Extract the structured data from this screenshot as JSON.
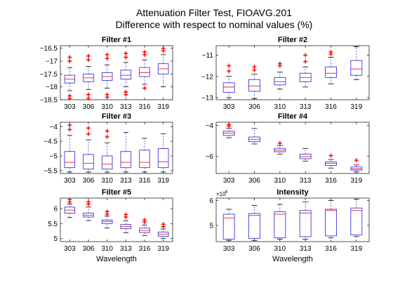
{
  "figure": {
    "title_line1": "Attenuation Filter Test, FIOAVG.201",
    "title_line2": "Difference with respect to nominal values (%)"
  },
  "colors": {
    "box": "#3a3adf",
    "median": "#e8202a",
    "outlier": "#ff0000",
    "axis": "#262626"
  },
  "chart_data": [
    {
      "type": "boxplot",
      "title": "Filter #1",
      "xlabel": "",
      "categories": [
        "303",
        "306",
        "310",
        "313",
        "316",
        "319"
      ],
      "ylim": [
        -18.5,
        -16.4
      ],
      "yticks": [
        -18.5,
        -18,
        -17.5,
        -17,
        -16.5
      ],
      "boxes": [
        {
          "whisker_low": -18.15,
          "q1": -17.85,
          "median": -17.7,
          "q3": -17.55,
          "whisker_high": -17.25,
          "outliers_low": [
            -18.35,
            -18.45
          ],
          "outliers_high": [
            -17.0,
            -16.85
          ]
        },
        {
          "whisker_low": -18.1,
          "q1": -17.8,
          "median": -17.65,
          "q3": -17.5,
          "whisker_high": -17.2,
          "outliers_low": [
            -18.3,
            -18.45
          ],
          "outliers_high": [
            -16.95,
            -16.8
          ]
        },
        {
          "whisker_low": -18.05,
          "q1": -17.75,
          "median": -17.6,
          "q3": -17.45,
          "whisker_high": -17.15,
          "outliers_low": [
            -18.3,
            -18.4
          ],
          "outliers_high": [
            -16.9,
            -16.75
          ]
        },
        {
          "whisker_low": -18.0,
          "q1": -17.7,
          "median": -17.55,
          "q3": -17.35,
          "whisker_high": -17.05,
          "outliers_low": [
            -18.2,
            -18.3
          ],
          "outliers_high": [
            -16.85,
            -16.7
          ]
        },
        {
          "whisker_low": -17.9,
          "q1": -17.6,
          "median": -17.45,
          "q3": -17.25,
          "whisker_high": -16.95,
          "outliers_low": [
            -18.05
          ],
          "outliers_high": [
            -16.75,
            -16.65
          ]
        },
        {
          "whisker_low": -18.0,
          "q1": -17.5,
          "median": -17.3,
          "q3": -17.1,
          "whisker_high": -16.75,
          "outliers_low": [],
          "outliers_high": [
            -16.6,
            -16.5
          ]
        }
      ]
    },
    {
      "type": "boxplot",
      "title": "Filter #2",
      "xlabel": "",
      "categories": [
        "303",
        "306",
        "310",
        "313",
        "316",
        "319"
      ],
      "ylim": [
        -13.1,
        -10.55
      ],
      "yticks": [
        -13,
        -12,
        -11
      ],
      "boxes": [
        {
          "whisker_low": -13.0,
          "q1": -12.75,
          "median": -12.5,
          "q3": -12.3,
          "whisker_high": -12.0,
          "outliers_low": [],
          "outliers_high": [
            -11.75,
            -11.5
          ]
        },
        {
          "whisker_low": -13.05,
          "q1": -12.7,
          "median": -12.45,
          "q3": -12.15,
          "whisker_high": -11.9,
          "outliers_low": [],
          "outliers_high": [
            -11.7,
            -11.55
          ]
        },
        {
          "whisker_low": -12.6,
          "q1": -12.4,
          "median": -12.25,
          "q3": -12.05,
          "whisker_high": -11.8,
          "outliers_low": [],
          "outliers_high": [
            -11.5,
            -11.4
          ]
        },
        {
          "whisker_low": -12.5,
          "q1": -12.25,
          "median": -12.05,
          "q3": -11.85,
          "whisker_high": -11.55,
          "outliers_low": [],
          "outliers_high": [
            -11.3,
            -11.0
          ]
        },
        {
          "whisker_low": -12.35,
          "q1": -12.05,
          "median": -11.85,
          "q3": -11.55,
          "whisker_high": -11.1,
          "outliers_low": [],
          "outliers_high": [
            -10.95,
            -10.85
          ]
        },
        {
          "whisker_low": -12.15,
          "q1": -11.95,
          "median": -11.65,
          "q3": -11.25,
          "whisker_high": -10.6,
          "outliers_low": [],
          "outliers_high": []
        }
      ]
    },
    {
      "type": "boxplot",
      "title": "Filter #3",
      "xlabel": "",
      "categories": [
        "303",
        "306",
        "310",
        "313",
        "316",
        "319"
      ],
      "ylim": [
        -5.6,
        -3.85
      ],
      "yticks": [
        -5.5,
        -5,
        -4.5,
        -4
      ],
      "boxes": [
        {
          "whisker_low": -5.55,
          "q1": -5.4,
          "median": -5.22,
          "q3": -4.85,
          "whisker_high": -4.3,
          "outliers_low": [],
          "outliers_high": [
            -4.1,
            -3.95
          ]
        },
        {
          "whisker_low": -5.55,
          "q1": -5.45,
          "median": -5.25,
          "q3": -4.95,
          "whisker_high": -4.45,
          "outliers_low": [],
          "outliers_high": [
            -4.25,
            -4.05
          ]
        },
        {
          "whisker_low": -5.55,
          "q1": -5.45,
          "median": -5.28,
          "q3": -5.0,
          "whisker_high": -4.55,
          "outliers_low": [],
          "outliers_high": [
            -4.35,
            -4.15
          ]
        },
        {
          "whisker_low": -5.55,
          "q1": -5.4,
          "median": -5.22,
          "q3": -4.85,
          "whisker_high": -4.2,
          "outliers_low": [],
          "outliers_high": []
        },
        {
          "whisker_low": -5.55,
          "q1": -5.4,
          "median": -5.22,
          "q3": -4.8,
          "whisker_high": -4.4,
          "outliers_low": [],
          "outliers_high": []
        },
        {
          "whisker_low": -5.55,
          "q1": -5.4,
          "median": -5.2,
          "q3": -4.75,
          "whisker_high": -4.25,
          "outliers_low": [],
          "outliers_high": []
        }
      ]
    },
    {
      "type": "boxplot",
      "title": "Filter #4",
      "xlabel": "",
      "categories": [
        "303",
        "306",
        "310",
        "313",
        "316",
        "319"
      ],
      "ylim": [
        -7.1,
        -3.8
      ],
      "yticks": [
        -6,
        -4
      ],
      "boxes": [
        {
          "whisker_low": -4.8,
          "q1": -4.65,
          "median": -4.5,
          "q3": -4.38,
          "whisker_high": -4.2,
          "outliers_low": [],
          "outliers_high": [
            -4.05,
            -3.95
          ]
        },
        {
          "whisker_low": -5.2,
          "q1": -5.05,
          "median": -4.9,
          "q3": -4.75,
          "whisker_high": -4.2,
          "outliers_low": [],
          "outliers_high": []
        },
        {
          "whisker_low": -5.85,
          "q1": -5.7,
          "median": -5.6,
          "q3": -5.48,
          "whisker_high": -5.3,
          "outliers_low": [],
          "outliers_high": [
            -5.15
          ]
        },
        {
          "whisker_low": -6.3,
          "q1": -6.15,
          "median": -6.02,
          "q3": -5.85,
          "whisker_high": -5.5,
          "outliers_low": [],
          "outliers_high": []
        },
        {
          "whisker_low": -6.75,
          "q1": -6.58,
          "median": -6.45,
          "q3": -6.35,
          "whisker_high": -6.2,
          "outliers_low": [],
          "outliers_high": [
            -5.95
          ]
        },
        {
          "whisker_low": -7.0,
          "q1": -6.88,
          "median": -6.8,
          "q3": -6.68,
          "whisker_high": -6.55,
          "outliers_low": [],
          "outliers_high": [
            -6.25
          ]
        }
      ]
    },
    {
      "type": "boxplot",
      "title": "Filter #5",
      "xlabel": "Wavelength",
      "categories": [
        "303",
        "306",
        "310",
        "313",
        "316",
        "319"
      ],
      "ylim": [
        4.9,
        6.35
      ],
      "yticks": [
        5,
        5.5,
        6
      ],
      "boxes": [
        {
          "whisker_low": 5.7,
          "q1": 5.85,
          "median": 5.95,
          "q3": 6.05,
          "whisker_high": 6.15,
          "outliers_low": [],
          "outliers_high": [
            6.22,
            6.3
          ]
        },
        {
          "whisker_low": 5.6,
          "q1": 5.72,
          "median": 5.78,
          "q3": 5.85,
          "whisker_high": 6.05,
          "outliers_low": [],
          "outliers_high": [
            6.15,
            6.22
          ]
        },
        {
          "whisker_low": 5.35,
          "q1": 5.5,
          "median": 5.57,
          "q3": 5.62,
          "whisker_high": 5.75,
          "outliers_low": [],
          "outliers_high": [
            5.82,
            5.9
          ]
        },
        {
          "whisker_low": 5.2,
          "q1": 5.33,
          "median": 5.4,
          "q3": 5.47,
          "whisker_high": 5.6,
          "outliers_low": [],
          "outliers_high": [
            5.72,
            5.8
          ]
        },
        {
          "whisker_low": 5.1,
          "q1": 5.2,
          "median": 5.27,
          "q3": 5.35,
          "whisker_high": 5.45,
          "outliers_low": [],
          "outliers_high": [
            5.55,
            5.62
          ]
        },
        {
          "whisker_low": 5.0,
          "q1": 5.08,
          "median": 5.15,
          "q3": 5.22,
          "whisker_high": 5.32,
          "outliers_low": [],
          "outliers_high": [
            5.4,
            5.48
          ]
        }
      ]
    },
    {
      "type": "boxplot",
      "title": "Intensity",
      "xlabel": "Wavelength",
      "exponent_label": "×10",
      "exponent_power": "6",
      "categories": [
        "303",
        "306",
        "310",
        "313",
        "316",
        "319"
      ],
      "ylim": [
        4.35,
        6.1
      ],
      "yticks": [
        5,
        6
      ],
      "yticklabels": [
        "5",
        "6"
      ],
      "boxes": [
        {
          "whisker_low": 4.4,
          "q1": 4.45,
          "median": 5.3,
          "q3": 5.45,
          "whisker_high": 5.65,
          "outliers_low": [],
          "outliers_high": []
        },
        {
          "whisker_low": 4.4,
          "q1": 4.48,
          "median": 5.4,
          "q3": 5.48,
          "whisker_high": 5.8,
          "outliers_low": [],
          "outliers_high": []
        },
        {
          "whisker_low": 4.45,
          "q1": 4.5,
          "median": 5.45,
          "q3": 5.55,
          "whisker_high": 5.85,
          "outliers_low": [],
          "outliers_high": []
        },
        {
          "whisker_low": 4.45,
          "q1": 4.55,
          "median": 5.5,
          "q3": 5.6,
          "whisker_high": 5.95,
          "outliers_low": [],
          "outliers_high": []
        },
        {
          "whisker_low": 4.5,
          "q1": 4.58,
          "median": 5.6,
          "q3": 5.65,
          "whisker_high": 6.0,
          "outliers_low": [],
          "outliers_high": []
        },
        {
          "whisker_low": 4.55,
          "q1": 4.62,
          "median": 5.6,
          "q3": 5.7,
          "whisker_high": 6.05,
          "outliers_low": [],
          "outliers_high": []
        }
      ]
    }
  ]
}
